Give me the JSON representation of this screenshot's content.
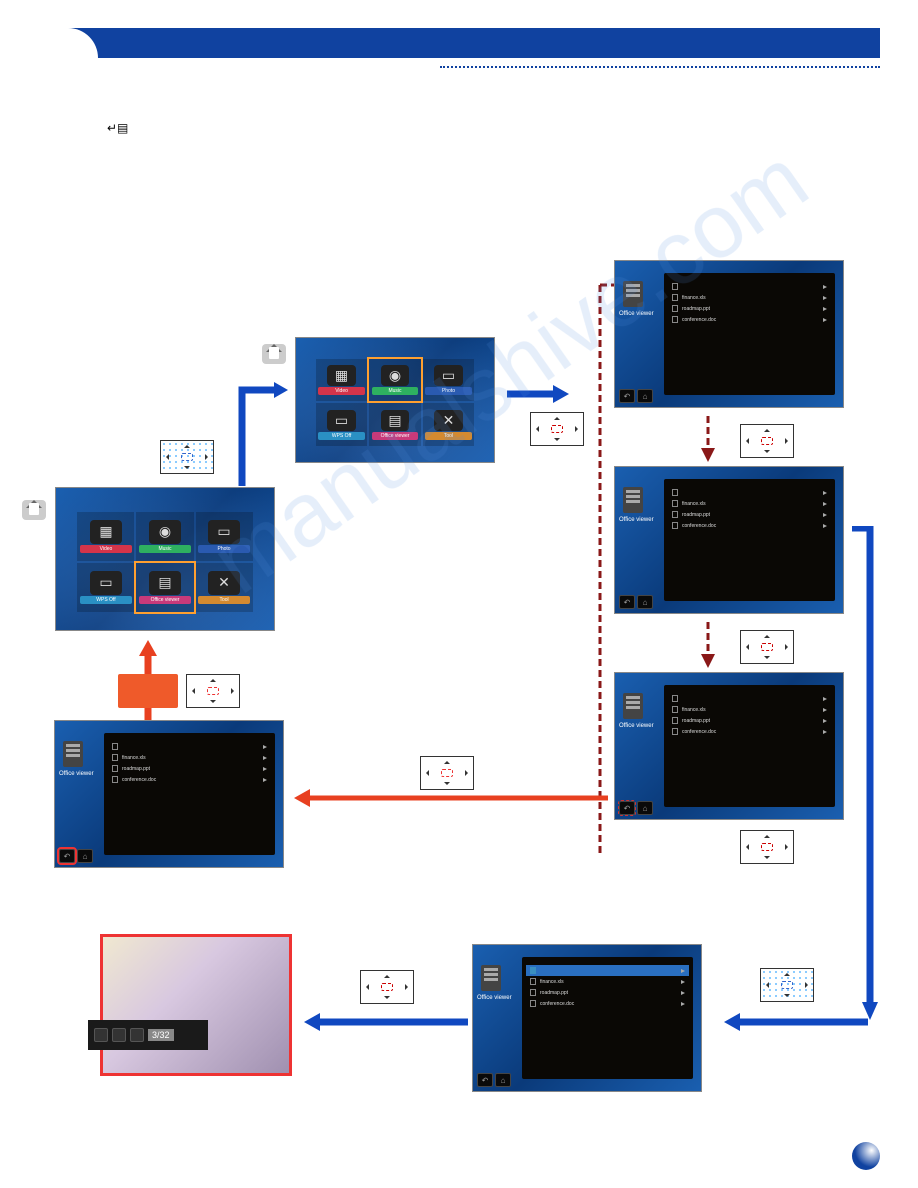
{
  "page": {
    "enter_symbol": "↵▤"
  },
  "menu": {
    "labels": [
      "Video",
      "Music",
      "Photo",
      "WPS Off",
      "Office viewer",
      "Tool"
    ],
    "cell_colors_A": [
      "#d4344a",
      "#2eb060",
      "#2a5ab0",
      "#2a90c4",
      "#c83a7a",
      "#d48a30"
    ],
    "cell_colors_B": [
      "#d4344a",
      "#2eb060",
      "#2a5ab0",
      "#2a90c4",
      "#c83a7a",
      "#d48a30"
    ],
    "highlight_A": 4,
    "highlight_B": 1
  },
  "files": {
    "header_label": "Office viewer",
    "rows": [
      "finance.xls",
      "roadmap.ppt",
      "conference.doc"
    ],
    "folder_row": "—",
    "page_indicator": "3/32"
  },
  "colors": {
    "header": "#1042a0",
    "blue_arrow": "#1048c0",
    "red_arrow": "#e84020",
    "dark_red_dash": "#8a1818",
    "orange_block": "#ef5a2a"
  },
  "watermark": "manualshive.com"
}
